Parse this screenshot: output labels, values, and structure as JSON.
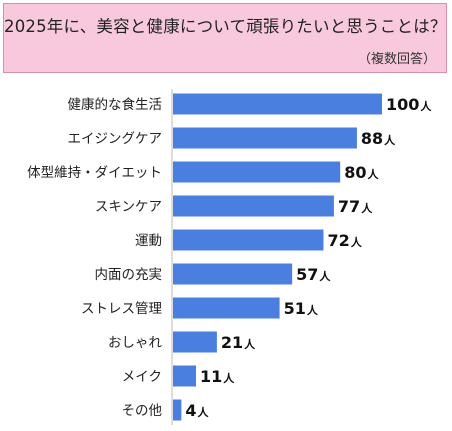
{
  "header": {
    "title": "2025年に、美容と健康について頑張りたいと思うことは？",
    "subtitle": "（複数回答）"
  },
  "colors": {
    "bar": "#4a7fe0",
    "header_background": "#f8c9dc",
    "header_border": "#d98fb0"
  },
  "chart_data": {
    "type": "bar",
    "orientation": "horizontal",
    "title": "2025年に、美容と健康について頑張りたいと思うことは？",
    "subtitle": "（複数回答）",
    "categories": [
      "健康的な食生活",
      "エイジングケア",
      "体型維持・ダイエット",
      "スキンケア",
      "運動",
      "内面の充実",
      "ストレス管理",
      "おしゃれ",
      "メイク",
      "その他"
    ],
    "values": [
      100,
      88,
      80,
      77,
      72,
      57,
      51,
      21,
      11,
      4
    ],
    "unit": "人",
    "xlim": [
      0,
      100
    ],
    "grid": false,
    "legend": "none"
  }
}
